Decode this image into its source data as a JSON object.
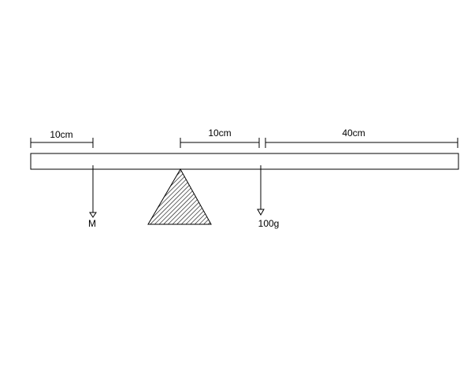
{
  "dimensions": {
    "left_segment": "10cm",
    "middle_segment": "10cm",
    "right_segment": "40cm"
  },
  "loads": {
    "left_mass_label": "M",
    "right_mass_label": "100g"
  }
}
